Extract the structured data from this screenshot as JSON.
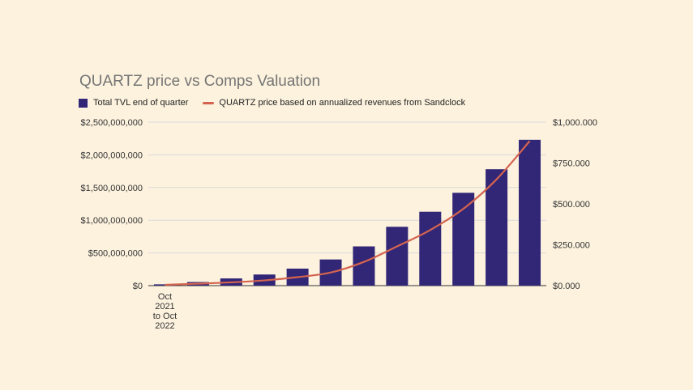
{
  "colors": {
    "bar": "#322677",
    "line": "#d4644f",
    "grid": "#d9d9d9",
    "background": "#fcf2de"
  },
  "chart_data": {
    "type": "bar",
    "title": "QUARTZ price vs Comps Valuation",
    "categories": [
      "Oct 2021 to Oct 2022",
      "",
      "",
      "",
      "",
      "",
      "",
      "",
      "",
      "",
      "",
      ""
    ],
    "series": [
      {
        "name": "Total TVL end of quarter",
        "type": "bar",
        "axis": "left",
        "values": [
          20000000,
          55000000,
          110000000,
          170000000,
          260000000,
          400000000,
          600000000,
          900000000,
          1130000000,
          1420000000,
          1780000000,
          2230000000
        ]
      },
      {
        "name": "QUARTZ price based on annualized revenues from Sandclock",
        "type": "line",
        "axis": "right",
        "values": [
          5,
          12,
          20,
          32,
          52,
          80,
          145,
          240,
          340,
          470,
          650,
          885
        ]
      }
    ],
    "left_axis": {
      "ticks": [
        "$0",
        "$500,000,000",
        "$1,000,000,000",
        "$1,500,000,000",
        "$2,000,000,000",
        "$2,500,000,000"
      ],
      "range": [
        0,
        2500000000
      ]
    },
    "right_axis": {
      "ticks": [
        "$0.000",
        "$250.000",
        "$500.000",
        "$750.000",
        "$1,000.000"
      ],
      "range": [
        0,
        1000
      ]
    },
    "x_label_lines": [
      "Oct",
      "2021",
      "to Oct",
      "2022"
    ],
    "legend_position": "top-left",
    "grid": true
  }
}
